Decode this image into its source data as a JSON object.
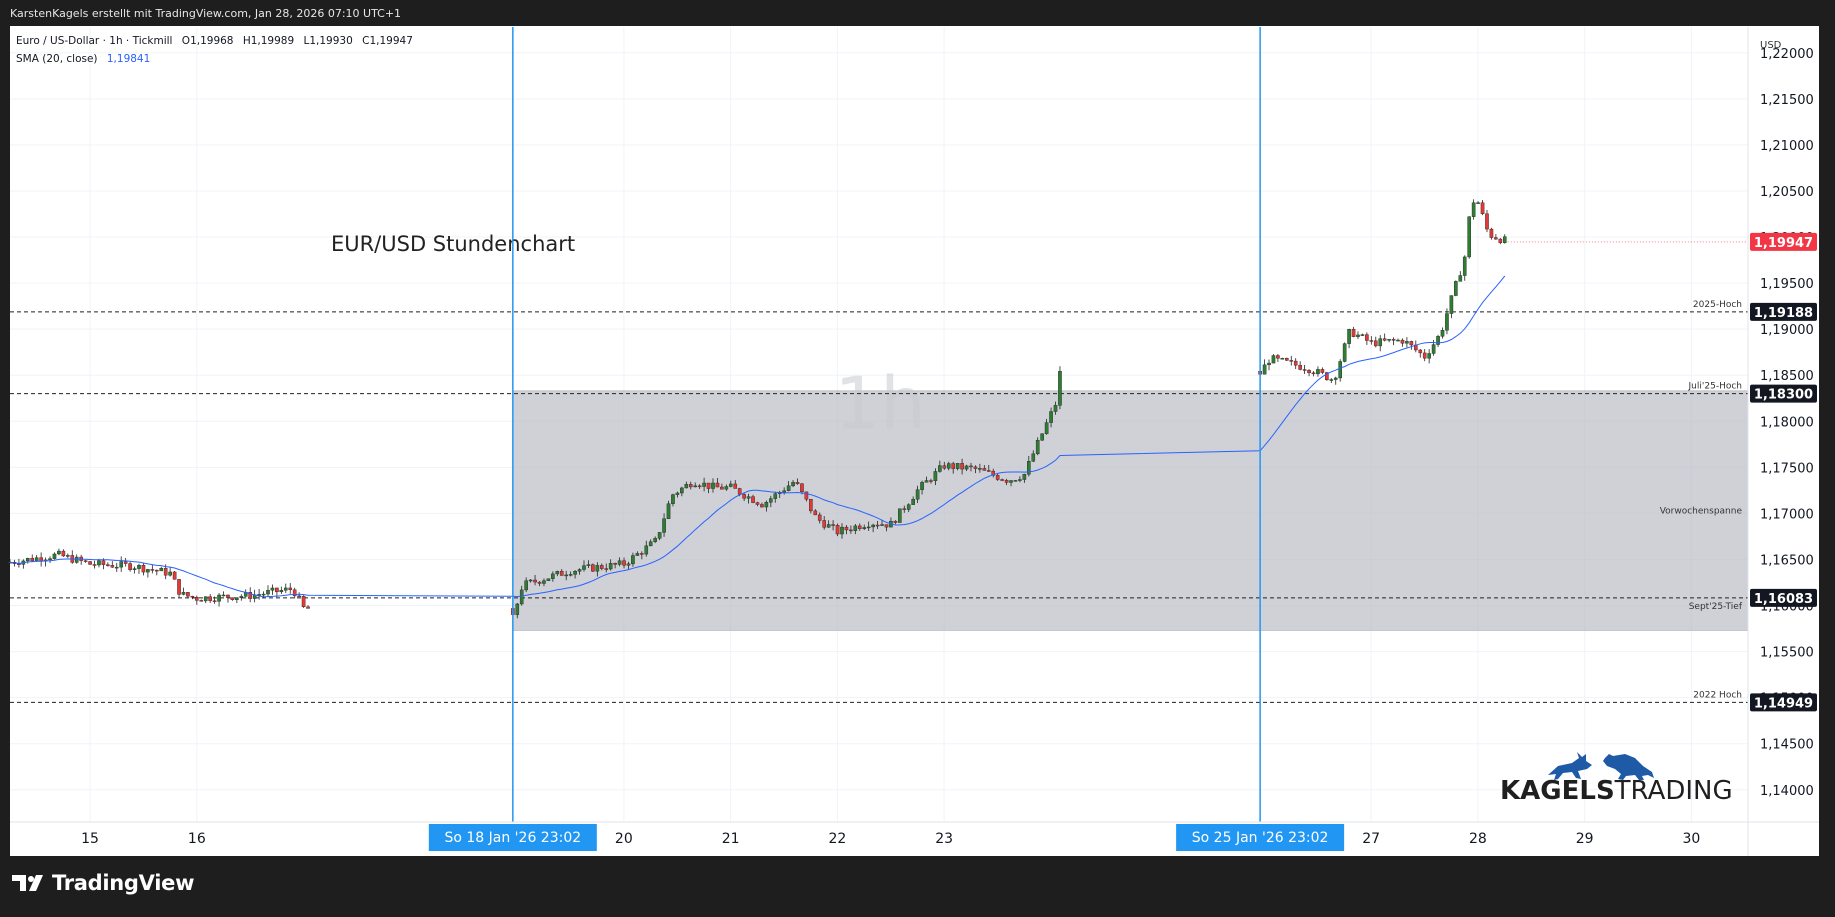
{
  "header": {
    "caption": "KarstenKagels erstellt mit TradingView.com, Jan 28, 2026 07:10 UTC+1"
  },
  "legend": {
    "symbol_line": "Euro / US-Dollar · 1h · Tickmill",
    "ohlc": {
      "o_label": "O",
      "o": "1,19968",
      "h_label": "H",
      "h": "1,19989",
      "l_label": "L",
      "l": "1,19930",
      "c_label": "C",
      "c": "1,19947"
    },
    "sma_label": "SMA (20, close)",
    "sma_value": "1,19841"
  },
  "watermark": "1h",
  "footer": {
    "brand": "TradingView"
  },
  "brand_logo": {
    "text_bold": "KAGELS",
    "text_light": "TRADING"
  },
  "colors": {
    "up": "#26a69a",
    "up_body": "#2e7d32",
    "down": "#e53935",
    "sma": "#2962ff",
    "vline": "#2196f3",
    "range_fill": "#b2b5be",
    "price_badge": "#f23645"
  },
  "chart_data": {
    "type": "candlestick",
    "title": "EUR/USD Stundenchart",
    "currency_label": "USD",
    "ylim": [
      1.1365,
      1.2228
    ],
    "y_ticks": [
      1.14,
      1.145,
      1.15,
      1.155,
      1.16,
      1.165,
      1.17,
      1.175,
      1.18,
      1.185,
      1.19,
      1.195,
      1.2,
      1.205,
      1.21,
      1.215,
      1.22
    ],
    "y_tick_labels": [
      "1,14000",
      "1,14500",
      "1,15000",
      "1,15500",
      "1,16000",
      "1,16500",
      "1,17000",
      "1,17500",
      "1,18000",
      "1,18500",
      "1,19000",
      "1,19500",
      "1,20000",
      "1,20500",
      "1,21000",
      "1,21500",
      "1,22000"
    ],
    "x_range_days": [
      14.25,
      30.53
    ],
    "x_ticks": [
      {
        "day": 15,
        "label": "15"
      },
      {
        "day": 16,
        "label": "16"
      },
      {
        "day": 20,
        "label": "20"
      },
      {
        "day": 21,
        "label": "21"
      },
      {
        "day": 22,
        "label": "22"
      },
      {
        "day": 23,
        "label": "23"
      },
      {
        "day": 27,
        "label": "27"
      },
      {
        "day": 28,
        "label": "28"
      },
      {
        "day": 29,
        "label": "29"
      },
      {
        "day": 30,
        "label": "30"
      }
    ],
    "session_markers": [
      {
        "day": 18.96,
        "label": "So 18 Jan '26   23:02"
      },
      {
        "day": 25.96,
        "label": "So 25 Jan '26   23:02"
      }
    ],
    "levels": [
      {
        "price": 1.19188,
        "value_label": "1,19188",
        "name": "2025-Hoch"
      },
      {
        "price": 1.183,
        "value_label": "1,18300",
        "name": "Juli'25-Hoch"
      },
      {
        "price": 1.16083,
        "value_label": "1,16083",
        "name": "Sept'25-Tief"
      },
      {
        "price": 1.14949,
        "value_label": "1,14949",
        "name": "2022 Hoch"
      }
    ],
    "last_price": {
      "price": 1.19947,
      "label": "1,19947"
    },
    "range_box": {
      "label": "Vorwochenspanne",
      "top": 1.1833,
      "bottom": 1.1573,
      "start_day": 18.96
    },
    "price_path": [
      {
        "day": 14.25,
        "price": 1.1647
      },
      {
        "day": 14.7,
        "price": 1.1655
      },
      {
        "day": 15.0,
        "price": 1.1645
      },
      {
        "day": 15.4,
        "price": 1.1643
      },
      {
        "day": 15.75,
        "price": 1.1635
      },
      {
        "day": 15.85,
        "price": 1.1612
      },
      {
        "day": 16.0,
        "price": 1.1608
      },
      {
        "day": 16.5,
        "price": 1.1611
      },
      {
        "day": 16.9,
        "price": 1.1618
      },
      {
        "day": 17.0,
        "price": 1.1597
      },
      {
        "day": 17.5,
        "price": 1.1592
      },
      {
        "day": 18.96,
        "price": 1.1586
      },
      {
        "day": 19.05,
        "price": 1.1622
      },
      {
        "day": 19.5,
        "price": 1.1638
      },
      {
        "day": 20.0,
        "price": 1.1645
      },
      {
        "day": 20.3,
        "price": 1.167
      },
      {
        "day": 20.45,
        "price": 1.172
      },
      {
        "day": 20.65,
        "price": 1.1735
      },
      {
        "day": 20.85,
        "price": 1.1728
      },
      {
        "day": 21.0,
        "price": 1.1728
      },
      {
        "day": 21.3,
        "price": 1.171
      },
      {
        "day": 21.6,
        "price": 1.1735
      },
      {
        "day": 21.8,
        "price": 1.1695
      },
      {
        "day": 22.0,
        "price": 1.168
      },
      {
        "day": 22.3,
        "price": 1.169
      },
      {
        "day": 22.5,
        "price": 1.1688
      },
      {
        "day": 22.75,
        "price": 1.1725
      },
      {
        "day": 23.0,
        "price": 1.1752
      },
      {
        "day": 23.3,
        "price": 1.1748
      },
      {
        "day": 23.6,
        "price": 1.1736
      },
      {
        "day": 23.75,
        "price": 1.1742
      },
      {
        "day": 23.9,
        "price": 1.1782
      },
      {
        "day": 24.08,
        "price": 1.1828
      },
      {
        "day": 25.96,
        "price": 1.1852
      },
      {
        "day": 26.05,
        "price": 1.1868
      },
      {
        "day": 26.4,
        "price": 1.1858
      },
      {
        "day": 26.65,
        "price": 1.1845
      },
      {
        "day": 26.8,
        "price": 1.1898
      },
      {
        "day": 27.0,
        "price": 1.1885
      },
      {
        "day": 27.3,
        "price": 1.1888
      },
      {
        "day": 27.5,
        "price": 1.187
      },
      {
        "day": 27.65,
        "price": 1.1895
      },
      {
        "day": 27.75,
        "price": 1.1932
      },
      {
        "day": 27.85,
        "price": 1.1968
      },
      {
        "day": 27.9,
        "price": 1.1988
      },
      {
        "day": 27.93,
        "price": 1.204
      },
      {
        "day": 28.0,
        "price": 1.2038
      },
      {
        "day": 28.1,
        "price": 1.2003
      },
      {
        "day": 28.28,
        "price": 1.1995
      }
    ],
    "sma_series_name": "SMA (20, close)"
  }
}
